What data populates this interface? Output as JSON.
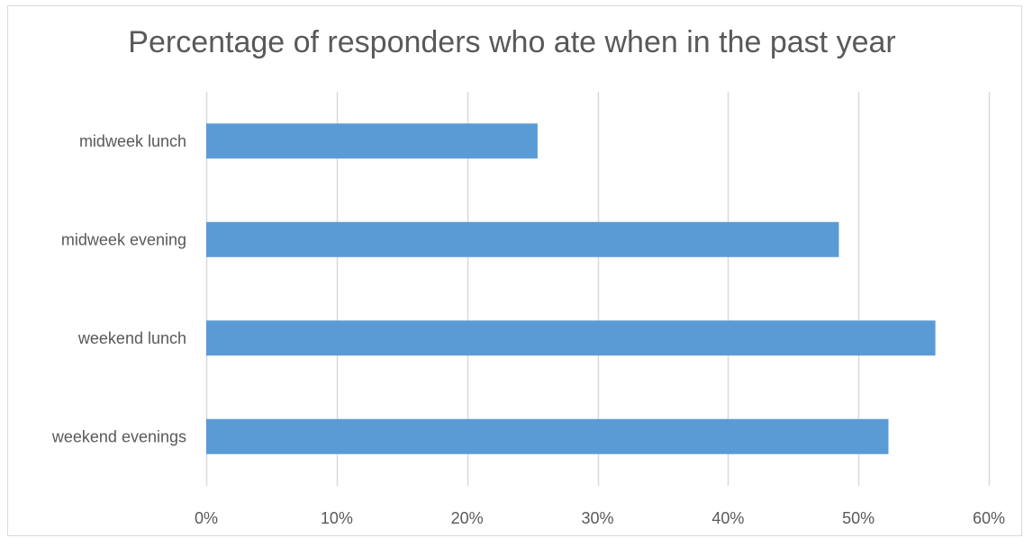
{
  "chart_data": {
    "type": "bar",
    "orientation": "horizontal",
    "title": "Percentage of responders who ate when in the past year",
    "categories": [
      "midweek lunch",
      "midweek evening",
      "weekend lunch",
      "weekend evenings"
    ],
    "values": [
      25.4,
      48.5,
      55.9,
      52.3
    ],
    "unit": "%",
    "xlim": [
      0,
      60
    ],
    "xticks": [
      "0%",
      "10%",
      "20%",
      "30%",
      "40%",
      "50%",
      "60%"
    ],
    "xtick_values": [
      0,
      10,
      20,
      30,
      40,
      50,
      60
    ],
    "grid": true,
    "legend": "none",
    "colors": {
      "bar": "#5b9bd5",
      "grid": "#d9d9d9",
      "text": "#595959"
    }
  }
}
